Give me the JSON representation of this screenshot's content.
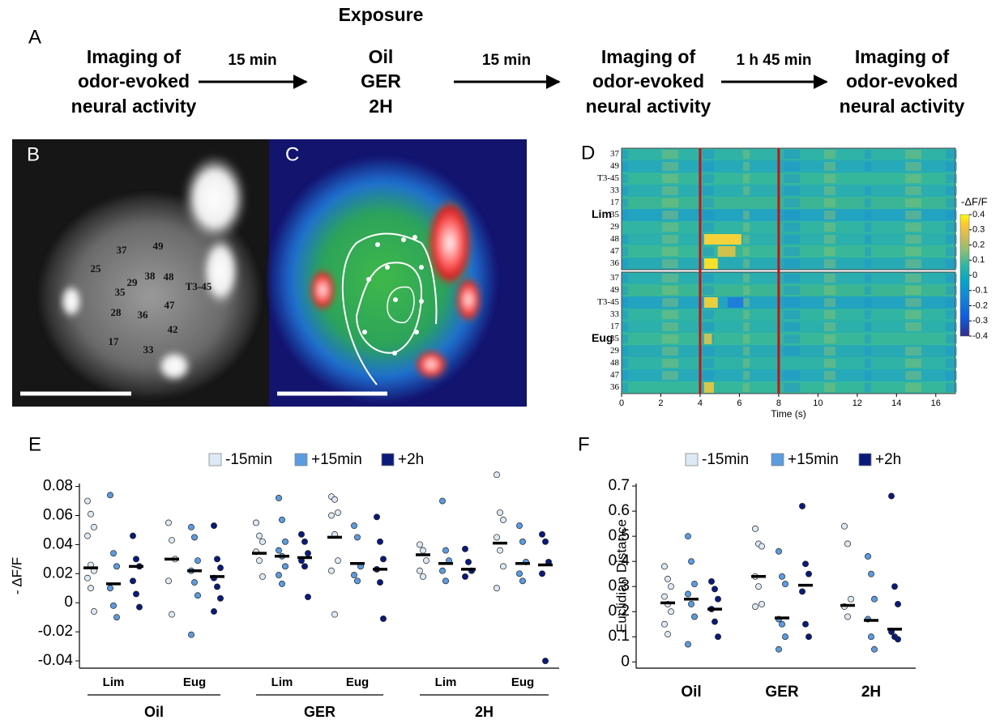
{
  "panel_labels": [
    "A",
    "B",
    "C",
    "D",
    "E",
    "F"
  ],
  "flow": {
    "header": "Exposure",
    "steps": [
      [
        "Imaging of",
        "odor-evoked",
        "neural activity"
      ],
      [
        "Oil",
        "GER",
        "2H"
      ],
      [
        "Imaging of",
        "odor-evoked",
        "neural activity"
      ],
      [
        "Imaging of",
        "odor-evoked",
        "neural activity"
      ]
    ],
    "arrows": [
      "15 min",
      "15 min",
      "1 h 45 min"
    ]
  },
  "panel_b": {
    "glomeruli": [
      "25",
      "37",
      "49",
      "29",
      "38",
      "48",
      "T3-45",
      "35",
      "36",
      "47",
      "28",
      "42",
      "17",
      "33"
    ]
  },
  "panel_d": {
    "rows": [
      "37",
      "49",
      "T3-45",
      "33",
      "17",
      "35",
      "29",
      "48",
      "47",
      "36"
    ],
    "groups": [
      "Lim",
      "Eug"
    ],
    "x_label": "Time (s)",
    "xlim": [
      0,
      17
    ],
    "xticks": [
      0,
      2,
      4,
      6,
      8,
      10,
      12,
      14,
      16
    ],
    "stimulus_lines": [
      4,
      8
    ],
    "colorbar": {
      "title": "-ΔF/F",
      "lim": [
        -0.4,
        0.4
      ],
      "ticks": [
        0.4,
        0.3,
        0.2,
        0.1,
        0,
        -0.1,
        -0.2,
        -0.3,
        -0.4
      ]
    }
  },
  "chart_data": [
    {
      "type": "strip",
      "ylabel": "- ΔF/F",
      "categories": [
        "Lim",
        "Eug",
        "Lim",
        "Eug",
        "Lim",
        "Eug"
      ],
      "groups": [
        "Oil",
        "GER",
        "2H"
      ],
      "ylim": [
        -0.045,
        0.082
      ],
      "yticks": [
        0.08,
        0.06,
        0.04,
        0.02,
        0,
        -0.02,
        -0.04
      ],
      "series": [
        {
          "name": "-15min",
          "color": "#dde9f5",
          "values": [
            [
              0.07,
              0.061,
              0.052,
              0.046,
              0.026,
              0.022,
              0.017,
              0.01,
              -0.006
            ],
            [
              0.055,
              0.043,
              0.03,
              0.015,
              -0.008
            ],
            [
              0.055,
              0.046,
              0.042,
              0.035,
              0.029,
              0.018
            ],
            [
              0.073,
              0.071,
              0.062,
              0.06,
              0.047,
              0.029,
              0.022,
              -0.008
            ],
            [
              0.04,
              0.036,
              0.029,
              0.022,
              0.018
            ],
            [
              0.088,
              0.062,
              0.057,
              0.045,
              0.036,
              0.025,
              0.01
            ]
          ],
          "means": [
            0.024,
            0.03,
            0.034,
            0.045,
            0.033,
            0.041
          ]
        },
        {
          "name": "+15min",
          "color": "#5b9be0",
          "values": [
            [
              0.074,
              0.034,
              0.025,
              0.01,
              -0.002,
              -0.01
            ],
            [
              0.052,
              0.045,
              0.029,
              0.022,
              0.014,
              0.005,
              -0.022
            ],
            [
              0.072,
              0.057,
              0.042,
              0.036,
              0.032,
              0.025,
              0.019,
              0.013
            ],
            [
              0.053,
              0.045,
              0.025,
              0.019,
              0.015
            ],
            [
              0.07,
              0.036,
              0.029,
              0.022,
              0.015
            ],
            [
              0.053,
              0.042,
              0.028,
              0.02,
              0.015
            ]
          ],
          "means": [
            0.013,
            0.022,
            0.032,
            0.027,
            0.027,
            0.027
          ]
        },
        {
          "name": "+2h",
          "color": "#0a1a7a",
          "values": [
            [
              0.046,
              0.03,
              0.025,
              0.015,
              0.006,
              -0.003
            ],
            [
              0.053,
              0.03,
              0.024,
              0.017,
              0.011,
              0.003,
              -0.006
            ],
            [
              0.047,
              0.042,
              0.034,
              0.029,
              0.025,
              0.004
            ],
            [
              0.059,
              0.042,
              0.03,
              0.023,
              0.014,
              -0.011
            ],
            [
              0.037,
              0.028,
              0.022,
              0.018
            ],
            [
              0.047,
              0.042,
              0.028,
              0.02,
              -0.04
            ]
          ],
          "means": [
            0.025,
            0.018,
            0.031,
            0.023,
            0.023,
            0.026
          ]
        }
      ]
    },
    {
      "type": "strip",
      "ylabel": "Euclidian Distance",
      "categories": [
        "Oil",
        "GER",
        "2H"
      ],
      "ylim": [
        -0.025,
        0.71
      ],
      "yticks": [
        0,
        0.1,
        0.2,
        0.3,
        0.4,
        0.5,
        0.6,
        0.7
      ],
      "series": [
        {
          "name": "-15min",
          "color": "#dde9f5",
          "values": [
            [
              0.38,
              0.33,
              0.3,
              0.26,
              0.23,
              0.2,
              0.15,
              0.11
            ],
            [
              0.53,
              0.47,
              0.46,
              0.34,
              0.3,
              0.23,
              0.22
            ],
            [
              0.54,
              0.47,
              0.25,
              0.22,
              0.18
            ]
          ],
          "means": [
            0.235,
            0.34,
            0.225
          ]
        },
        {
          "name": "+15min",
          "color": "#5b9be0",
          "values": [
            [
              0.5,
              0.4,
              0.31,
              0.27,
              0.23,
              0.18,
              0.07
            ],
            [
              0.44,
              0.34,
              0.31,
              0.17,
              0.15,
              0.1,
              0.05
            ],
            [
              0.42,
              0.35,
              0.25,
              0.17,
              0.1,
              0.05
            ]
          ],
          "means": [
            0.25,
            0.175,
            0.165
          ]
        },
        {
          "name": "+2h",
          "color": "#0a1a7a",
          "values": [
            [
              0.32,
              0.29,
              0.25,
              0.21,
              0.16,
              0.1
            ],
            [
              0.62,
              0.39,
              0.35,
              0.28,
              0.15,
              0.1
            ],
            [
              0.66,
              0.3,
              0.23,
              0.12,
              0.1,
              0.09
            ]
          ],
          "means": [
            0.21,
            0.305,
            0.13
          ]
        }
      ]
    }
  ]
}
